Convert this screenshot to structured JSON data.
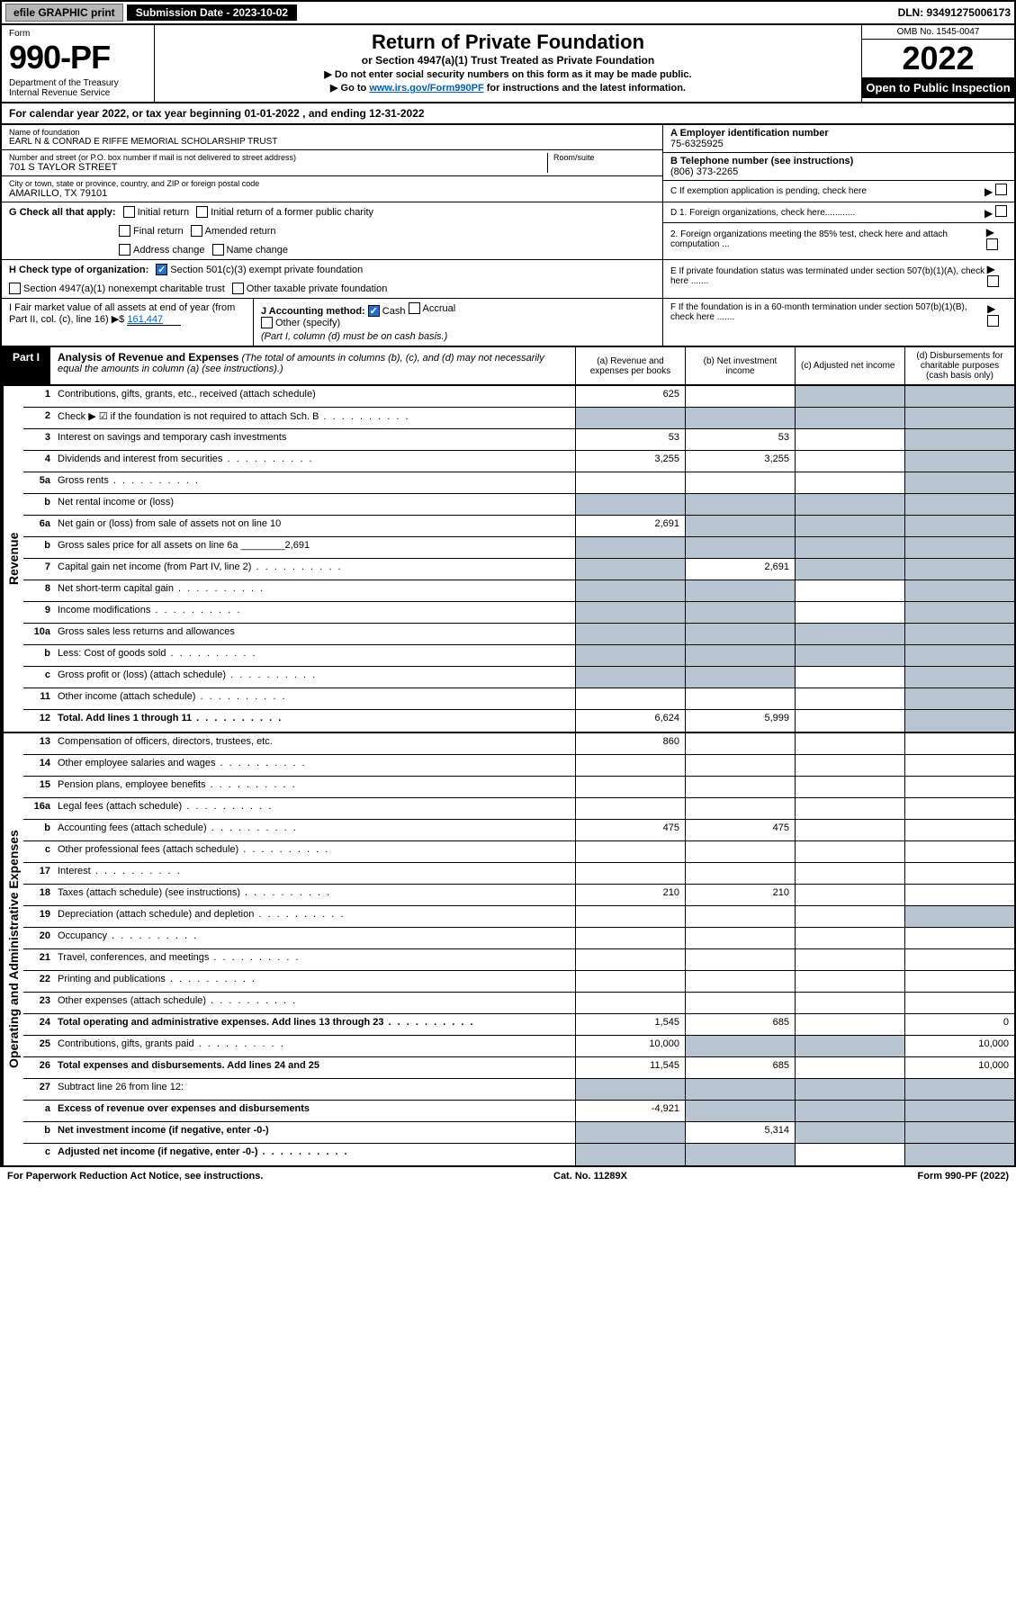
{
  "topbar": {
    "efile": "efile GRAPHIC print",
    "submission": "Submission Date - 2023-10-02",
    "dln": "DLN: 93491275006173"
  },
  "header": {
    "form_label": "Form",
    "form_number": "990-PF",
    "dept": "Department of the Treasury\nInternal Revenue Service",
    "title": "Return of Private Foundation",
    "subtitle": "or Section 4947(a)(1) Trust Treated as Private Foundation",
    "note1": "▶ Do not enter social security numbers on this form as it may be made public.",
    "note2_pre": "▶ Go to ",
    "note2_link": "www.irs.gov/Form990PF",
    "note2_post": " for instructions and the latest information.",
    "omb": "OMB No. 1545-0047",
    "year": "2022",
    "open_pub": "Open to Public Inspection"
  },
  "calendar": "For calendar year 2022, or tax year beginning 01-01-2022                          , and ending 12-31-2022",
  "name_label": "Name of foundation",
  "foundation_name": "EARL N & CONRAD E RIFFE MEMORIAL SCHOLARSHIP TRUST",
  "ein_label": "A Employer identification number",
  "ein": "75-6325925",
  "address_label": "Number and street (or P.O. box number if mail is not delivered to street address)",
  "address": "701 S TAYLOR STREET",
  "room_label": "Room/suite",
  "phone_label": "B Telephone number (see instructions)",
  "phone": "(806) 373-2265",
  "city_label": "City or town, state or province, country, and ZIP or foreign postal code",
  "city": "AMARILLO, TX  79101",
  "c_label": "C If exemption application is pending, check here",
  "g_label": "G Check all that apply:",
  "g_opts": {
    "initial": "Initial return",
    "initial_former": "Initial return of a former public charity",
    "final": "Final return",
    "amended": "Amended return",
    "addr": "Address change",
    "name": "Name change"
  },
  "d1": "D 1. Foreign organizations, check here............",
  "d2": "2. Foreign organizations meeting the 85% test, check here and attach computation ...",
  "e_label": "E  If private foundation status was terminated under section 507(b)(1)(A), check here .......",
  "h_label": "H Check type of organization:",
  "h_501c3": "Section 501(c)(3) exempt private foundation",
  "h_4947": "Section 4947(a)(1) nonexempt charitable trust",
  "h_other_tax": "Other taxable private foundation",
  "i_label": "I Fair market value of all assets at end of year (from Part II, col. (c), line 16) ▶$",
  "i_value": "161,447",
  "j_label": "J Accounting method:",
  "j_cash": "Cash",
  "j_accrual": "Accrual",
  "j_other": "Other (specify)",
  "j_note": "(Part I, column (d) must be on cash basis.)",
  "f_label": "F  If the foundation is in a 60-month termination under section 507(b)(1)(B), check here .......",
  "part1": {
    "badge": "Part I",
    "title": "Analysis of Revenue and Expenses",
    "title_note": "(The total of amounts in columns (b), (c), and (d) may not necessarily equal the amounts in column (a) (see instructions).)",
    "col_a": "(a)   Revenue and expenses per books",
    "col_b": "(b)   Net investment income",
    "col_c": "(c)   Adjusted net income",
    "col_d": "(d)  Disbursements for charitable purposes (cash basis only)"
  },
  "revenue_label": "Revenue",
  "expense_label": "Operating and Administrative Expenses",
  "rows": [
    {
      "ln": "1",
      "desc": "Contributions, gifts, grants, etc., received (attach schedule)",
      "a": "625",
      "b": "",
      "c": "shaded",
      "d": "shaded"
    },
    {
      "ln": "2",
      "desc": "Check ▶ ☑ if the foundation is not required to attach Sch. B",
      "a": "shaded",
      "b": "shaded",
      "c": "shaded",
      "d": "shaded",
      "dots": true
    },
    {
      "ln": "3",
      "desc": "Interest on savings and temporary cash investments",
      "a": "53",
      "b": "53",
      "c": "",
      "d": "shaded"
    },
    {
      "ln": "4",
      "desc": "Dividends and interest from securities",
      "a": "3,255",
      "b": "3,255",
      "c": "",
      "d": "shaded",
      "dots": true
    },
    {
      "ln": "5a",
      "desc": "Gross rents",
      "a": "",
      "b": "",
      "c": "",
      "d": "shaded",
      "dots": true
    },
    {
      "ln": "b",
      "desc": "Net rental income or (loss)",
      "a": "shaded",
      "b": "shaded",
      "c": "shaded",
      "d": "shaded"
    },
    {
      "ln": "6a",
      "desc": "Net gain or (loss) from sale of assets not on line 10",
      "a": "2,691",
      "b": "shaded",
      "c": "shaded",
      "d": "shaded"
    },
    {
      "ln": "b",
      "desc": "Gross sales price for all assets on line 6a ________2,691",
      "a": "shaded",
      "b": "shaded",
      "c": "shaded",
      "d": "shaded"
    },
    {
      "ln": "7",
      "desc": "Capital gain net income (from Part IV, line 2)",
      "a": "shaded",
      "b": "2,691",
      "c": "shaded",
      "d": "shaded",
      "dots": true
    },
    {
      "ln": "8",
      "desc": "Net short-term capital gain",
      "a": "shaded",
      "b": "shaded",
      "c": "",
      "d": "shaded",
      "dots": true
    },
    {
      "ln": "9",
      "desc": "Income modifications",
      "a": "shaded",
      "b": "shaded",
      "c": "",
      "d": "shaded",
      "dots": true
    },
    {
      "ln": "10a",
      "desc": "Gross sales less returns and allowances",
      "a": "shaded",
      "b": "shaded",
      "c": "shaded",
      "d": "shaded"
    },
    {
      "ln": "b",
      "desc": "Less: Cost of goods sold",
      "a": "shaded",
      "b": "shaded",
      "c": "shaded",
      "d": "shaded",
      "dots": true
    },
    {
      "ln": "c",
      "desc": "Gross profit or (loss) (attach schedule)",
      "a": "shaded",
      "b": "shaded",
      "c": "",
      "d": "shaded",
      "dots": true
    },
    {
      "ln": "11",
      "desc": "Other income (attach schedule)",
      "a": "",
      "b": "",
      "c": "",
      "d": "shaded",
      "dots": true
    },
    {
      "ln": "12",
      "desc": "Total. Add lines 1 through 11",
      "a": "6,624",
      "b": "5,999",
      "c": "",
      "d": "shaded",
      "bold": true,
      "dots": true
    }
  ],
  "exp_rows": [
    {
      "ln": "13",
      "desc": "Compensation of officers, directors, trustees, etc.",
      "a": "860",
      "b": "",
      "c": "",
      "d": ""
    },
    {
      "ln": "14",
      "desc": "Other employee salaries and wages",
      "a": "",
      "b": "",
      "c": "",
      "d": "",
      "dots": true
    },
    {
      "ln": "15",
      "desc": "Pension plans, employee benefits",
      "a": "",
      "b": "",
      "c": "",
      "d": "",
      "dots": true
    },
    {
      "ln": "16a",
      "desc": "Legal fees (attach schedule)",
      "a": "",
      "b": "",
      "c": "",
      "d": "",
      "dots": true
    },
    {
      "ln": "b",
      "desc": "Accounting fees (attach schedule)",
      "a": "475",
      "b": "475",
      "c": "",
      "d": "",
      "dots": true
    },
    {
      "ln": "c",
      "desc": "Other professional fees (attach schedule)",
      "a": "",
      "b": "",
      "c": "",
      "d": "",
      "dots": true
    },
    {
      "ln": "17",
      "desc": "Interest",
      "a": "",
      "b": "",
      "c": "",
      "d": "",
      "dots": true
    },
    {
      "ln": "18",
      "desc": "Taxes (attach schedule) (see instructions)",
      "a": "210",
      "b": "210",
      "c": "",
      "d": "",
      "dots": true
    },
    {
      "ln": "19",
      "desc": "Depreciation (attach schedule) and depletion",
      "a": "",
      "b": "",
      "c": "",
      "d": "shaded",
      "dots": true
    },
    {
      "ln": "20",
      "desc": "Occupancy",
      "a": "",
      "b": "",
      "c": "",
      "d": "",
      "dots": true
    },
    {
      "ln": "21",
      "desc": "Travel, conferences, and meetings",
      "a": "",
      "b": "",
      "c": "",
      "d": "",
      "dots": true
    },
    {
      "ln": "22",
      "desc": "Printing and publications",
      "a": "",
      "b": "",
      "c": "",
      "d": "",
      "dots": true
    },
    {
      "ln": "23",
      "desc": "Other expenses (attach schedule)",
      "a": "",
      "b": "",
      "c": "",
      "d": "",
      "dots": true
    },
    {
      "ln": "24",
      "desc": "Total operating and administrative expenses. Add lines 13 through 23",
      "a": "1,545",
      "b": "685",
      "c": "",
      "d": "0",
      "bold": true,
      "dots": true
    },
    {
      "ln": "25",
      "desc": "Contributions, gifts, grants paid",
      "a": "10,000",
      "b": "shaded",
      "c": "shaded",
      "d": "10,000",
      "dots": true
    },
    {
      "ln": "26",
      "desc": "Total expenses and disbursements. Add lines 24 and 25",
      "a": "11,545",
      "b": "685",
      "c": "",
      "d": "10,000",
      "bold": true
    },
    {
      "ln": "27",
      "desc": "Subtract line 26 from line 12:",
      "a": "shaded",
      "b": "shaded",
      "c": "shaded",
      "d": "shaded"
    },
    {
      "ln": "a",
      "desc": "Excess of revenue over expenses and disbursements",
      "a": "-4,921",
      "b": "shaded",
      "c": "shaded",
      "d": "shaded",
      "bold": true
    },
    {
      "ln": "b",
      "desc": "Net investment income (if negative, enter -0-)",
      "a": "shaded",
      "b": "5,314",
      "c": "shaded",
      "d": "shaded",
      "bold": true
    },
    {
      "ln": "c",
      "desc": "Adjusted net income (if negative, enter -0-)",
      "a": "shaded",
      "b": "shaded",
      "c": "",
      "d": "shaded",
      "bold": true,
      "dots": true
    }
  ],
  "footer": {
    "left": "For Paperwork Reduction Act Notice, see instructions.",
    "center": "Cat. No. 11289X",
    "right": "Form 990-PF (2022)"
  }
}
